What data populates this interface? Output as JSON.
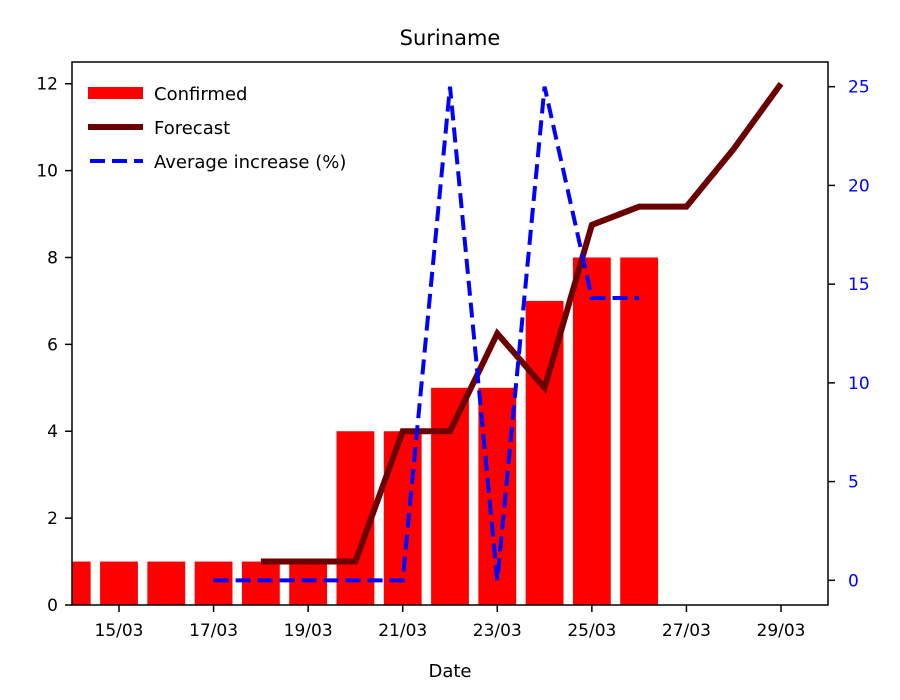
{
  "chart_data": {
    "type": "bar",
    "title": "Suriname",
    "xlabel": "Date",
    "ylabel": "",
    "ylim": [
      0,
      12.5
    ],
    "y2lim": [
      -1.25,
      26.25
    ],
    "x_tick_labels": [
      "15/03",
      "17/03",
      "19/03",
      "21/03",
      "23/03",
      "25/03",
      "27/03",
      "29/03"
    ],
    "y_tick_labels": [
      "0",
      "2",
      "4",
      "6",
      "8",
      "10",
      "12"
    ],
    "y2_tick_labels": [
      "0",
      "5",
      "10",
      "15",
      "20",
      "25"
    ],
    "legend_position": "top-left",
    "confirmed": {
      "name": "Confirmed",
      "color": "#ff0000",
      "dates": [
        "14/03",
        "15/03",
        "16/03",
        "17/03",
        "18/03",
        "19/03",
        "20/03",
        "21/03",
        "22/03",
        "23/03",
        "24/03",
        "25/03",
        "26/03"
      ],
      "values": [
        1,
        1,
        1,
        1,
        1,
        1,
        4,
        4,
        5,
        5,
        7,
        8,
        8
      ]
    },
    "forecast": {
      "name": "Forecast",
      "color": "#6b0000",
      "dates": [
        "18/03",
        "19/03",
        "20/03",
        "21/03",
        "22/03",
        "23/03",
        "24/03",
        "25/03",
        "26/03",
        "27/03",
        "28/03",
        "29/03"
      ],
      "values": [
        1.0,
        1.0,
        1.0,
        4.0,
        4.0,
        6.25,
        5.0,
        8.75,
        9.17,
        9.17,
        10.5,
        12.0
      ]
    },
    "average_increase": {
      "name": "Average increase (%)",
      "color": "#0000ff",
      "dates": [
        "17/03",
        "18/03",
        "19/03",
        "20/03",
        "21/03",
        "22/03",
        "23/03",
        "24/03",
        "25/03",
        "26/03"
      ],
      "values": [
        0,
        0,
        0,
        0,
        0,
        25,
        0,
        25,
        14.3,
        14.3
      ]
    }
  }
}
